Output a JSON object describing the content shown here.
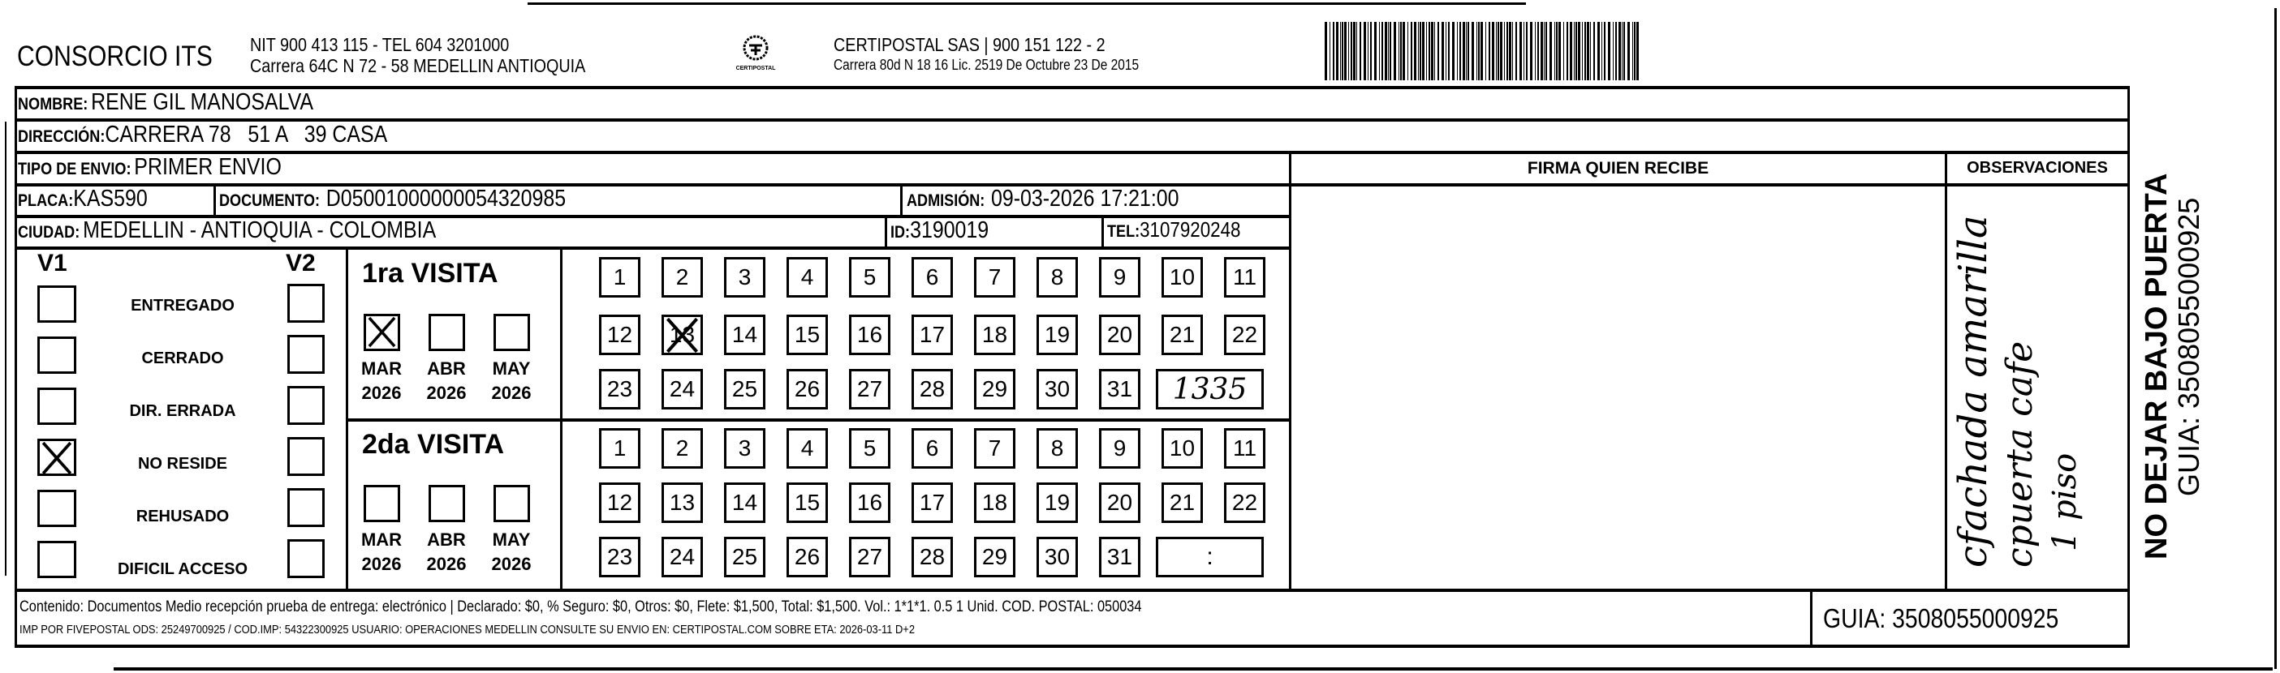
{
  "header": {
    "company": "CONSORCIO ITS",
    "company_line1": "NIT 900 413 115 - TEL 604 3201000",
    "company_line2": "Carrera 64C N 72 - 58 MEDELLIN ANTIOQUIA",
    "logo_text": "CERTIPOSTAL",
    "carrier_line1": "CERTIPOSTAL SAS | 900 151 122 - 2",
    "carrier_line2": "Carrera 80d N 18 16  Lic. 2519 De Octubre 23 De 2015"
  },
  "fields": {
    "nombre_label": "NOMBRE:",
    "nombre": "RENE GIL MANOSALVA",
    "direccion_label": "DIRECCIÓN:",
    "direccion": "CARRERA 78   51 A   39 CASA",
    "tipo_label": "TIPO DE ENVIO:",
    "tipo": "PRIMER ENVIO",
    "placa_label": "PLACA:",
    "placa": "KAS590",
    "documento_label": "DOCUMENTO:",
    "documento": "D05001000000054320985",
    "admision_label": "ADMISIÓN:",
    "admision": "09-03-2026 17:21:00",
    "ciudad_label": "CIUDAD:",
    "ciudad": "MEDELLIN - ANTIOQUIA - COLOMBIA",
    "id_label": "ID:",
    "id": "3190019",
    "tel_label": "TEL:",
    "tel": "3107920248"
  },
  "firma_label": "FIRMA QUIEN RECIBE",
  "observaciones": {
    "label": "OBSERVACIONES",
    "handwritten": [
      "cfachada amarilla",
      "cpuerta cafe",
      "1 piso"
    ]
  },
  "side": {
    "warning": "NO DEJAR BAJO PUERTA",
    "guia": "GUIA: 3508055000925"
  },
  "status": {
    "v1_label": "V1",
    "v2_label": "V2",
    "options": [
      {
        "label": "ENTREGADO",
        "v1": false,
        "v2": false
      },
      {
        "label": "CERRADO",
        "v1": false,
        "v2": false
      },
      {
        "label": "DIR. ERRADA",
        "v1": false,
        "v2": false
      },
      {
        "label": "NO RESIDE",
        "v1": true,
        "v2": false
      },
      {
        "label": "REHUSADO",
        "v1": false,
        "v2": false
      },
      {
        "label": "DIFICIL ACCESO",
        "v1": false,
        "v2": false
      }
    ]
  },
  "visits": [
    {
      "title": "1ra VISITA",
      "months": [
        {
          "m": "MAR",
          "y": "2026",
          "checked": true
        },
        {
          "m": "ABR",
          "y": "2026",
          "checked": false
        },
        {
          "m": "MAY",
          "y": "2026",
          "checked": false
        }
      ],
      "marked_day": 13,
      "time": "1335"
    },
    {
      "title": "2da VISITA",
      "months": [
        {
          "m": "MAR",
          "y": "2026",
          "checked": false
        },
        {
          "m": "ABR",
          "y": "2026",
          "checked": false
        },
        {
          "m": "MAY",
          "y": "2026",
          "checked": false
        }
      ],
      "marked_day": null,
      "time": ":"
    }
  ],
  "days": [
    1,
    2,
    3,
    4,
    5,
    6,
    7,
    8,
    9,
    10,
    11,
    12,
    13,
    14,
    15,
    16,
    17,
    18,
    19,
    20,
    21,
    22,
    23,
    24,
    25,
    26,
    27,
    28,
    29,
    30,
    31
  ],
  "footer": {
    "contenido": "Contenido: Documentos Medio recepción prueba de entrega: electrónico | Declarado: $0, % Seguro: $0, Otros: $0, Flete: $1,500, Total: $1,500. Vol.: 1*1*1. 0.5  1 Unid. COD. POSTAL: 050034",
    "imp": "IMP POR FIVEPOSTAL ODS: 25249700925 / COD.IMP: 54322300925 USUARIO: OPERACIONES MEDELLIN CONSULTE SU ENVIO EN: CERTIPOSTAL.COM SOBRE ETA: 2026-03-11 D+2",
    "guia": "GUIA: 3508055000925"
  }
}
